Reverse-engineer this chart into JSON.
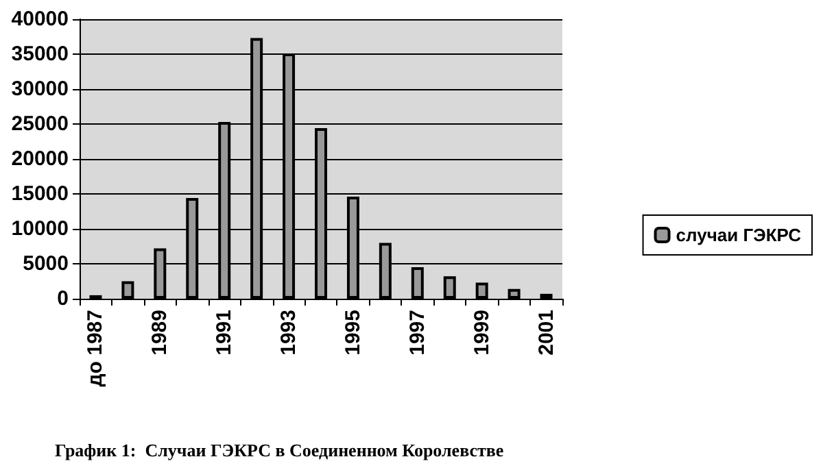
{
  "chart_data": {
    "type": "bar",
    "annotations": [
      "График 1:  Случаи ГЭКРС в Соединенном Королевстве"
    ],
    "categories": [
      "до 1987",
      null,
      "1989",
      null,
      "1991",
      null,
      "1993",
      null,
      "1995",
      null,
      "1997",
      null,
      "1999",
      null,
      "2001"
    ],
    "series": [
      {
        "name": "случаи ГЭКРС",
        "color": "#999999",
        "values": [
          500,
          2500,
          7200,
          14400,
          25300,
          37300,
          35100,
          24400,
          14600,
          8000,
          4500,
          3200,
          2300,
          1400,
          700
        ]
      }
    ],
    "ylim": [
      0,
      40000
    ],
    "yticks": [
      0,
      5000,
      10000,
      15000,
      20000,
      25000,
      30000,
      35000,
      40000
    ],
    "grid": "y",
    "legend": "right"
  }
}
